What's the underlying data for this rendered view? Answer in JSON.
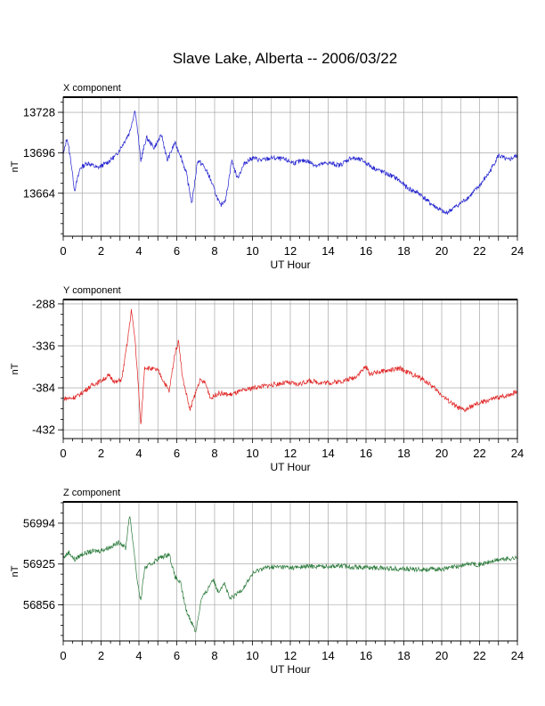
{
  "title": "Slave Lake, Alberta -- 2006/03/22",
  "colors": {
    "grid": "#9a9a9a",
    "frame": "#000000"
  },
  "chart_data": [
    {
      "type": "line",
      "panel_label": "X component",
      "xlabel": "UT Hour",
      "ylabel": "nT",
      "color": "#2020d0",
      "xlim": [
        0,
        24
      ],
      "ylim": [
        13630,
        13740
      ],
      "x_ticks": [
        0,
        2,
        4,
        6,
        8,
        10,
        12,
        14,
        16,
        18,
        20,
        22,
        24
      ],
      "y_ticks": [
        13728,
        13696,
        13664
      ],
      "grid": true,
      "series": [
        {
          "x": [
            0,
            0.2,
            0.4,
            0.6,
            0.9,
            1.3,
            1.8,
            2.3,
            2.8,
            3.2,
            3.5,
            3.8,
            4.1,
            4.4,
            4.8,
            5.2,
            5.5,
            5.9,
            6.2,
            6.5,
            6.8,
            7.1,
            7.4,
            7.7,
            8.0,
            8.3,
            8.6,
            8.9,
            9.2,
            9.6,
            10.0,
            10.5,
            11.0,
            11.6,
            12.2,
            12.8,
            13.4,
            14.0,
            14.6,
            15.2,
            15.8,
            16.4,
            17.0,
            17.6,
            18.2,
            18.8,
            19.4,
            19.8,
            20.2,
            20.6,
            21.0,
            21.5,
            22.0,
            22.5,
            23.0,
            23.5,
            24.0
          ],
          "values": [
            13694,
            13708,
            13690,
            13666,
            13684,
            13688,
            13684,
            13688,
            13694,
            13704,
            13712,
            13730,
            13690,
            13708,
            13700,
            13710,
            13690,
            13704,
            13694,
            13680,
            13656,
            13690,
            13686,
            13678,
            13666,
            13654,
            13660,
            13690,
            13676,
            13688,
            13692,
            13690,
            13692,
            13691,
            13688,
            13690,
            13686,
            13688,
            13686,
            13692,
            13690,
            13684,
            13680,
            13676,
            13668,
            13664,
            13656,
            13652,
            13648,
            13652,
            13656,
            13662,
            13670,
            13680,
            13694,
            13690,
            13694
          ]
        }
      ]
    },
    {
      "type": "line",
      "panel_label": "Y component",
      "xlabel": "UT Hour",
      "ylabel": "nT",
      "color": "#e02020",
      "xlim": [
        0,
        24
      ],
      "ylim": [
        -442,
        -283
      ],
      "x_ticks": [
        0,
        2,
        4,
        6,
        8,
        10,
        12,
        14,
        16,
        18,
        20,
        22,
        24
      ],
      "y_ticks": [
        -288,
        -336,
        -384,
        -432
      ],
      "grid": true,
      "series": [
        {
          "x": [
            0,
            0.4,
            0.8,
            1.2,
            1.6,
            2.0,
            2.4,
            2.8,
            3.1,
            3.4,
            3.6,
            3.8,
            4.0,
            4.1,
            4.3,
            4.6,
            5.0,
            5.3,
            5.6,
            5.9,
            6.1,
            6.3,
            6.5,
            6.7,
            6.9,
            7.2,
            7.5,
            7.8,
            8.2,
            8.8,
            9.4,
            10.0,
            10.6,
            11.2,
            11.8,
            12.4,
            13.0,
            13.6,
            14.2,
            14.8,
            15.4,
            16.0,
            16.2,
            16.6,
            17.2,
            17.8,
            18.4,
            19.0,
            19.6,
            20.2,
            20.8,
            21.2,
            21.6,
            22.2,
            22.8,
            23.4,
            24.0
          ],
          "values": [
            -396,
            -396,
            -393,
            -386,
            -380,
            -376,
            -370,
            -378,
            -374,
            -330,
            -295,
            -330,
            -392,
            -428,
            -360,
            -362,
            -364,
            -376,
            -388,
            -345,
            -330,
            -372,
            -390,
            -410,
            -396,
            -376,
            -378,
            -396,
            -390,
            -392,
            -388,
            -384,
            -382,
            -380,
            -378,
            -380,
            -376,
            -378,
            -378,
            -376,
            -372,
            -360,
            -368,
            -366,
            -364,
            -362,
            -368,
            -374,
            -384,
            -396,
            -406,
            -410,
            -405,
            -400,
            -396,
            -393,
            -388
          ]
        }
      ]
    },
    {
      "type": "line",
      "panel_label": "Z component",
      "xlabel": "UT Hour",
      "ylabel": "nT",
      "color": "#2a7a3a",
      "xlim": [
        0,
        24
      ],
      "ylim": [
        56795,
        57030
      ],
      "x_ticks": [
        0,
        2,
        4,
        6,
        8,
        10,
        12,
        14,
        16,
        18,
        20,
        22,
        24
      ],
      "y_ticks": [
        56994,
        56925,
        56856
      ],
      "grid": true,
      "series": [
        {
          "x": [
            0,
            0.3,
            0.6,
            1.0,
            1.5,
            2.0,
            2.5,
            3.0,
            3.3,
            3.5,
            3.7,
            3.9,
            4.1,
            4.3,
            4.6,
            5.0,
            5.3,
            5.6,
            5.9,
            6.2,
            6.5,
            6.8,
            7.0,
            7.3,
            7.6,
            7.9,
            8.2,
            8.5,
            8.8,
            9.1,
            9.5,
            10.0,
            10.5,
            11.0,
            11.6,
            12.2,
            13.0,
            13.8,
            14.6,
            15.4,
            16.2,
            17.0,
            17.8,
            18.6,
            19.4,
            20.2,
            21.0,
            21.5,
            22.0,
            22.5,
            23.0,
            23.5,
            24.0
          ],
          "values": [
            56935,
            56945,
            56932,
            56942,
            56946,
            56948,
            56954,
            56962,
            56952,
            57008,
            56960,
            56900,
            56862,
            56918,
            56924,
            56934,
            56938,
            56942,
            56904,
            56892,
            56846,
            56826,
            56810,
            56866,
            56880,
            56900,
            56878,
            56894,
            56866,
            56872,
            56884,
            56908,
            56918,
            56920,
            56920,
            56919,
            56921,
            56921,
            56922,
            56920,
            56919,
            56918,
            56917,
            56916,
            56916,
            56917,
            56922,
            56926,
            56924,
            56928,
            56932,
            56934,
            56935
          ]
        }
      ]
    }
  ]
}
